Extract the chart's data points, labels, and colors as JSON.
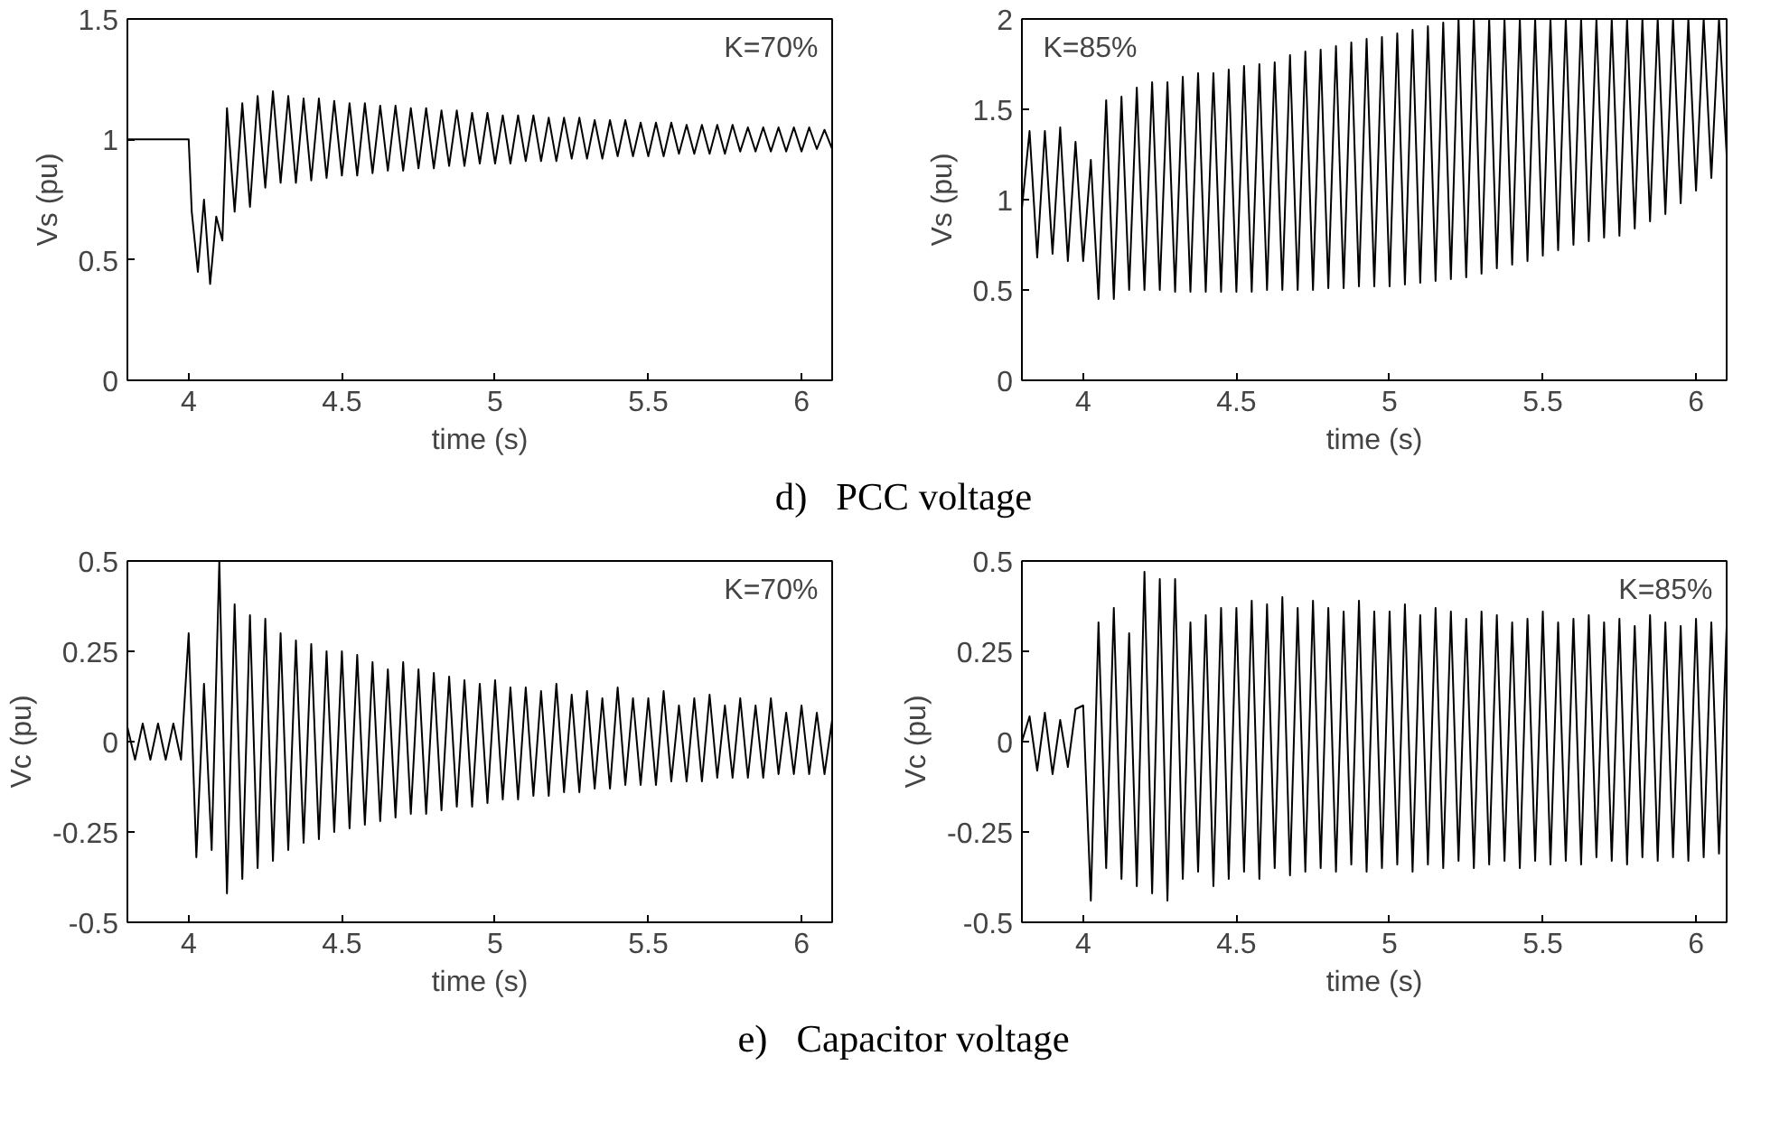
{
  "chart_data": [
    {
      "type": "line",
      "xlabel": "time (s)",
      "ylabel": "Vs (pu)",
      "annotations": [
        "K=70%",
        "d)   PCC voltage"
      ],
      "xlim": [
        3.8,
        6.1
      ],
      "xticks": [
        4,
        4.5,
        5,
        5.5,
        6
      ],
      "ylim": [
        0,
        1.5
      ],
      "yticks": [
        0,
        0.5,
        1,
        1.5
      ],
      "grid": false,
      "series": [
        {
          "color": "#000000",
          "x": [
            3.8,
            4.0,
            4.01,
            4.03,
            4.05,
            4.07,
            4.09,
            4.11,
            4.125,
            4.15,
            4.175,
            4.2,
            4.225,
            4.25,
            4.275,
            4.3,
            4.325,
            4.35,
            4.375,
            4.4,
            4.425,
            4.45,
            4.475,
            4.5,
            4.525,
            4.55,
            4.575,
            4.6,
            4.625,
            4.65,
            4.675,
            4.7,
            4.725,
            4.75,
            4.775,
            4.8,
            4.825,
            4.85,
            4.875,
            4.9,
            4.925,
            4.95,
            4.975,
            5.0,
            5.025,
            5.05,
            5.075,
            5.1,
            5.125,
            5.15,
            5.175,
            5.2,
            5.225,
            5.25,
            5.275,
            5.3,
            5.325,
            5.35,
            5.375,
            5.4,
            5.425,
            5.45,
            5.475,
            5.5,
            5.525,
            5.55,
            5.575,
            5.6,
            5.625,
            5.65,
            5.675,
            5.7,
            5.725,
            5.75,
            5.775,
            5.8,
            5.825,
            5.85,
            5.875,
            5.9,
            5.925,
            5.95,
            5.975,
            6.0,
            6.025,
            6.05,
            6.075,
            6.1
          ],
          "values": [
            1,
            1,
            0.7,
            0.45,
            0.75,
            0.4,
            0.68,
            0.58,
            1.13,
            0.7,
            1.15,
            0.72,
            1.18,
            0.8,
            1.2,
            0.82,
            1.18,
            0.82,
            1.17,
            0.83,
            1.17,
            0.84,
            1.16,
            0.85,
            1.15,
            0.85,
            1.15,
            0.86,
            1.14,
            0.87,
            1.14,
            0.87,
            1.13,
            0.88,
            1.13,
            0.88,
            1.12,
            0.89,
            1.12,
            0.89,
            1.11,
            0.9,
            1.11,
            0.9,
            1.1,
            0.9,
            1.1,
            0.91,
            1.1,
            0.91,
            1.09,
            0.91,
            1.09,
            0.92,
            1.09,
            0.92,
            1.08,
            0.92,
            1.08,
            0.93,
            1.08,
            0.93,
            1.07,
            0.93,
            1.07,
            0.93,
            1.07,
            0.94,
            1.06,
            0.94,
            1.06,
            0.94,
            1.06,
            0.94,
            1.06,
            0.95,
            1.05,
            0.95,
            1.05,
            0.95,
            1.05,
            0.95,
            1.05,
            0.95,
            1.05,
            0.96,
            1.04,
            0.96
          ]
        }
      ]
    },
    {
      "type": "line",
      "xlabel": "time (s)",
      "ylabel": "Vs (pu)",
      "annotations": [
        "K=85%"
      ],
      "xlim": [
        3.8,
        6.1
      ],
      "xticks": [
        4,
        4.5,
        5,
        5.5,
        6
      ],
      "ylim": [
        0,
        2
      ],
      "yticks": [
        0,
        0.5,
        1,
        1.5,
        2
      ],
      "grid": false,
      "series": [
        {
          "color": "#000000",
          "x": [
            3.8,
            3.825,
            3.85,
            3.875,
            3.9,
            3.925,
            3.95,
            3.975,
            4.0,
            4.025,
            4.05,
            4.075,
            4.1,
            4.125,
            4.15,
            4.175,
            4.2,
            4.225,
            4.25,
            4.275,
            4.3,
            4.325,
            4.35,
            4.375,
            4.4,
            4.425,
            4.45,
            4.475,
            4.5,
            4.525,
            4.55,
            4.575,
            4.6,
            4.625,
            4.65,
            4.675,
            4.7,
            4.725,
            4.75,
            4.775,
            4.8,
            4.825,
            4.85,
            4.875,
            4.9,
            4.925,
            4.95,
            4.975,
            5.0,
            5.025,
            5.05,
            5.075,
            5.1,
            5.125,
            5.15,
            5.175,
            5.2,
            5.225,
            5.25,
            5.275,
            5.3,
            5.325,
            5.35,
            5.375,
            5.4,
            5.425,
            5.45,
            5.475,
            5.5,
            5.525,
            5.55,
            5.575,
            5.6,
            5.625,
            5.65,
            5.675,
            5.7,
            5.725,
            5.75,
            5.775,
            5.8,
            5.825,
            5.85,
            5.875,
            5.9,
            5.925,
            5.95,
            5.975,
            6.0,
            6.025,
            6.05,
            6.075,
            6.1
          ],
          "values": [
            0.95,
            1.38,
            0.68,
            1.38,
            0.7,
            1.4,
            0.66,
            1.32,
            0.66,
            1.22,
            0.45,
            1.55,
            0.45,
            1.57,
            0.5,
            1.62,
            0.5,
            1.65,
            0.5,
            1.65,
            0.49,
            1.68,
            0.49,
            1.7,
            0.49,
            1.7,
            0.49,
            1.72,
            0.49,
            1.74,
            0.49,
            1.75,
            0.5,
            1.76,
            0.5,
            1.8,
            0.5,
            1.82,
            0.5,
            1.83,
            0.51,
            1.85,
            0.51,
            1.87,
            0.52,
            1.89,
            0.52,
            1.9,
            0.52,
            1.92,
            0.53,
            1.94,
            0.54,
            1.96,
            0.55,
            1.98,
            0.56,
            2,
            0.57,
            2,
            0.59,
            2,
            0.62,
            2,
            0.64,
            2,
            0.66,
            2,
            0.69,
            2,
            0.72,
            2,
            0.75,
            2,
            0.77,
            2,
            0.79,
            2,
            0.8,
            2,
            0.84,
            2,
            0.88,
            2,
            0.92,
            2,
            0.98,
            2,
            1.05,
            2,
            1.12,
            2,
            1.25
          ]
        }
      ]
    },
    {
      "type": "line",
      "xlabel": "time (s)",
      "ylabel": "Vc (pu)",
      "annotations": [
        "K=70%",
        "e)   Capacitor voltage"
      ],
      "xlim": [
        3.8,
        6.1
      ],
      "xticks": [
        4,
        4.5,
        5,
        5.5,
        6
      ],
      "ylim": [
        -0.5,
        0.5
      ],
      "yticks": [
        -0.5,
        -0.25,
        0,
        0.25,
        0.5
      ],
      "grid": false,
      "series": [
        {
          "color": "#000000",
          "x": [
            3.8,
            3.825,
            3.85,
            3.875,
            3.9,
            3.925,
            3.95,
            3.975,
            4.0,
            4.025,
            4.05,
            4.075,
            4.1,
            4.125,
            4.15,
            4.175,
            4.2,
            4.225,
            4.25,
            4.275,
            4.3,
            4.325,
            4.35,
            4.375,
            4.4,
            4.425,
            4.45,
            4.475,
            4.5,
            4.525,
            4.55,
            4.575,
            4.6,
            4.625,
            4.65,
            4.675,
            4.7,
            4.725,
            4.75,
            4.775,
            4.8,
            4.825,
            4.85,
            4.875,
            4.9,
            4.925,
            4.95,
            4.975,
            5.0,
            5.025,
            5.05,
            5.075,
            5.1,
            5.125,
            5.15,
            5.175,
            5.2,
            5.225,
            5.25,
            5.275,
            5.3,
            5.325,
            5.35,
            5.375,
            5.4,
            5.425,
            5.45,
            5.475,
            5.5,
            5.525,
            5.55,
            5.575,
            5.6,
            5.625,
            5.65,
            5.675,
            5.7,
            5.725,
            5.75,
            5.775,
            5.8,
            5.825,
            5.85,
            5.875,
            5.9,
            5.925,
            5.95,
            5.975,
            6.0,
            6.025,
            6.05,
            6.075,
            6.1
          ],
          "values": [
            0.04,
            -0.05,
            0.05,
            -0.05,
            0.05,
            -0.05,
            0.05,
            -0.05,
            0.3,
            -0.32,
            0.16,
            -0.3,
            0.5,
            -0.42,
            0.38,
            -0.38,
            0.35,
            -0.35,
            0.34,
            -0.33,
            0.3,
            -0.3,
            0.28,
            -0.28,
            0.27,
            -0.27,
            0.25,
            -0.25,
            0.25,
            -0.24,
            0.24,
            -0.23,
            0.22,
            -0.22,
            0.2,
            -0.21,
            0.22,
            -0.2,
            0.2,
            -0.2,
            0.19,
            -0.19,
            0.18,
            -0.18,
            0.17,
            -0.18,
            0.16,
            -0.17,
            0.17,
            -0.16,
            0.15,
            -0.16,
            0.15,
            -0.15,
            0.14,
            -0.15,
            0.16,
            -0.14,
            0.13,
            -0.14,
            0.14,
            -0.13,
            0.12,
            -0.13,
            0.15,
            -0.12,
            0.12,
            -0.12,
            0.12,
            -0.12,
            0.14,
            -0.11,
            0.1,
            -0.11,
            0.12,
            -0.11,
            0.13,
            -0.1,
            0.1,
            -0.1,
            0.12,
            -0.1,
            0.1,
            -0.1,
            0.12,
            -0.09,
            0.08,
            -0.09,
            0.1,
            -0.09,
            0.08,
            -0.09,
            0.06
          ]
        }
      ]
    },
    {
      "type": "line",
      "xlabel": "time (s)",
      "ylabel": "Vc (pu)",
      "annotations": [
        "K=85%"
      ],
      "xlim": [
        3.8,
        6.1
      ],
      "xticks": [
        4,
        4.5,
        5,
        5.5,
        6
      ],
      "ylim": [
        -0.5,
        0.5
      ],
      "yticks": [
        -0.5,
        -0.25,
        0,
        0.25,
        0.5
      ],
      "grid": false,
      "series": [
        {
          "color": "#000000",
          "x": [
            3.8,
            3.825,
            3.85,
            3.875,
            3.9,
            3.925,
            3.95,
            3.975,
            4.0,
            4.025,
            4.05,
            4.075,
            4.1,
            4.125,
            4.15,
            4.175,
            4.2,
            4.225,
            4.25,
            4.275,
            4.3,
            4.325,
            4.35,
            4.375,
            4.4,
            4.425,
            4.45,
            4.475,
            4.5,
            4.525,
            4.55,
            4.575,
            4.6,
            4.625,
            4.65,
            4.675,
            4.7,
            4.725,
            4.75,
            4.775,
            4.8,
            4.825,
            4.85,
            4.875,
            4.9,
            4.925,
            4.95,
            4.975,
            5.0,
            5.025,
            5.05,
            5.075,
            5.1,
            5.125,
            5.15,
            5.175,
            5.2,
            5.225,
            5.25,
            5.275,
            5.3,
            5.325,
            5.35,
            5.375,
            5.4,
            5.425,
            5.45,
            5.475,
            5.5,
            5.525,
            5.55,
            5.575,
            5.6,
            5.625,
            5.65,
            5.675,
            5.7,
            5.725,
            5.75,
            5.775,
            5.8,
            5.825,
            5.85,
            5.875,
            5.9,
            5.925,
            5.95,
            5.975,
            6.0,
            6.025,
            6.05,
            6.075,
            6.1
          ],
          "values": [
            0.0,
            0.07,
            -0.08,
            0.08,
            -0.09,
            0.06,
            -0.07,
            0.09,
            0.1,
            -0.44,
            0.33,
            -0.35,
            0.37,
            -0.38,
            0.3,
            -0.4,
            0.47,
            -0.42,
            0.45,
            -0.44,
            0.45,
            -0.38,
            0.33,
            -0.36,
            0.35,
            -0.4,
            0.37,
            -0.38,
            0.37,
            -0.36,
            0.39,
            -0.38,
            0.38,
            -0.35,
            0.4,
            -0.37,
            0.37,
            -0.36,
            0.39,
            -0.35,
            0.37,
            -0.36,
            0.36,
            -0.34,
            0.39,
            -0.36,
            0.36,
            -0.35,
            0.36,
            -0.34,
            0.38,
            -0.36,
            0.35,
            -0.34,
            0.37,
            -0.35,
            0.36,
            -0.33,
            0.34,
            -0.35,
            0.36,
            -0.34,
            0.35,
            -0.33,
            0.33,
            -0.35,
            0.34,
            -0.33,
            0.36,
            -0.34,
            0.33,
            -0.33,
            0.34,
            -0.34,
            0.35,
            -0.32,
            0.33,
            -0.33,
            0.34,
            -0.34,
            0.32,
            -0.32,
            0.35,
            -0.33,
            0.33,
            -0.32,
            0.32,
            -0.33,
            0.34,
            -0.32,
            0.33,
            -0.31,
            0.32
          ]
        }
      ]
    }
  ]
}
